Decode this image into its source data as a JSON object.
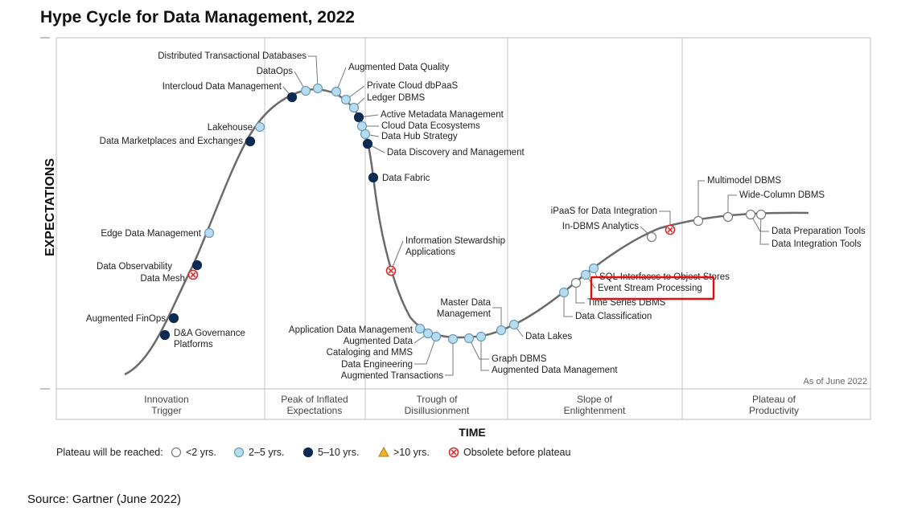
{
  "chart_data": {
    "type": "line",
    "title": "Hype Cycle for Data Management, 2022",
    "xlabel": "TIME",
    "ylabel": "EXPECTATIONS",
    "as_of": "As of June 2022",
    "source": "Source: Gartner (June 2022)",
    "phases": [
      [
        "Innovation",
        "Trigger"
      ],
      [
        "Peak of Inflated",
        "Expectations"
      ],
      [
        "Trough of",
        "Disillusionment"
      ],
      [
        "Slope of",
        "Enlightenment"
      ],
      [
        "Plateau of",
        "Productivity"
      ]
    ],
    "legend": {
      "prefix": "Plateau will be reached:",
      "items": [
        {
          "key": "lt2",
          "label": "<2 yrs."
        },
        {
          "key": "2to5",
          "label": "2–5 yrs."
        },
        {
          "key": "5to10",
          "label": "5–10 yrs."
        },
        {
          "key": "gt10",
          "label": ">10 yrs."
        },
        {
          "key": "obsolete",
          "label": "Obsolete before plateau"
        }
      ]
    },
    "colors": {
      "lt2": "#ffffff",
      "2to5": "#b8dcef",
      "5to10": "#0c2a52",
      "gt10": "#f0b323",
      "obsolete": "#d62b2b",
      "curve": "#6b6b6b",
      "highlight": "#e01010"
    },
    "highlighted": "Event Stream Processing",
    "technologies": [
      {
        "name": "D&A Governance Platforms",
        "lines": [
          "D&A Governance",
          "Platforms"
        ],
        "category": "5to10"
      },
      {
        "name": "Augmented FinOps",
        "lines": [
          "Augmented FinOps"
        ],
        "category": "5to10"
      },
      {
        "name": "Data Mesh",
        "lines": [
          "Data Mesh"
        ],
        "category": "obsolete"
      },
      {
        "name": "Data Observability",
        "lines": [
          "Data Observability"
        ],
        "category": "5to10"
      },
      {
        "name": "Edge Data Management",
        "lines": [
          "Edge Data Management"
        ],
        "category": "2to5"
      },
      {
        "name": "Data Marketplaces and Exchanges",
        "lines": [
          "Data Marketplaces and Exchanges"
        ],
        "category": "5to10"
      },
      {
        "name": "Lakehouse",
        "lines": [
          "Lakehouse"
        ],
        "category": "2to5"
      },
      {
        "name": "Intercloud Data Management",
        "lines": [
          "Intercloud Data Management"
        ],
        "category": "5to10"
      },
      {
        "name": "DataOps",
        "lines": [
          "DataOps"
        ],
        "category": "2to5"
      },
      {
        "name": "Distributed Transactional Databases",
        "lines": [
          "Distributed Transactional Databases"
        ],
        "category": "2to5"
      },
      {
        "name": "Augmented Data Quality",
        "lines": [
          "Augmented Data Quality"
        ],
        "category": "2to5"
      },
      {
        "name": "Private Cloud dbPaaS",
        "lines": [
          "Private Cloud dbPaaS"
        ],
        "category": "2to5"
      },
      {
        "name": "Ledger DBMS",
        "lines": [
          "Ledger DBMS"
        ],
        "category": "2to5"
      },
      {
        "name": "Active Metadata Management",
        "lines": [
          "Active Metadata Management"
        ],
        "category": "5to10"
      },
      {
        "name": "Cloud Data Ecosystems",
        "lines": [
          "Cloud Data Ecosystems"
        ],
        "category": "2to5"
      },
      {
        "name": "Data Hub Strategy",
        "lines": [
          "Data Hub Strategy"
        ],
        "category": "2to5"
      },
      {
        "name": "Data Discovery and Management",
        "lines": [
          "Data Discovery and Management"
        ],
        "category": "5to10"
      },
      {
        "name": "Data Fabric",
        "lines": [
          "Data Fabric"
        ],
        "category": "5to10"
      },
      {
        "name": "Information Stewardship Applications",
        "lines": [
          "Information Stewardship",
          "Applications"
        ],
        "category": "obsolete"
      },
      {
        "name": "Application Data Management",
        "lines": [
          "Application Data Management"
        ],
        "category": "2to5"
      },
      {
        "name": "Augmented Data Cataloging and MMS",
        "lines": [
          "Augmented Data",
          "Cataloging and MMS"
        ],
        "category": "2to5"
      },
      {
        "name": "Data Engineering",
        "lines": [
          "Data Engineering"
        ],
        "category": "2to5"
      },
      {
        "name": "Augmented Transactions",
        "lines": [
          "Augmented Transactions"
        ],
        "category": "2to5"
      },
      {
        "name": "Graph DBMS",
        "lines": [
          "Graph DBMS"
        ],
        "category": "2to5"
      },
      {
        "name": "Augmented Data Management",
        "lines": [
          "Augmented Data Management"
        ],
        "category": "2to5"
      },
      {
        "name": "Master Data Management",
        "lines": [
          "Master Data",
          "Management"
        ],
        "category": "2to5"
      },
      {
        "name": "Data Lakes",
        "lines": [
          "Data Lakes"
        ],
        "category": "2to5"
      },
      {
        "name": "Data Classification",
        "lines": [
          "Data Classification"
        ],
        "category": "2to5"
      },
      {
        "name": "Time Series DBMS",
        "lines": [
          "Time Series DBMS"
        ],
        "category": "lt2"
      },
      {
        "name": "Event Stream Processing",
        "lines": [
          "Event Stream Processing"
        ],
        "category": "2to5"
      },
      {
        "name": "SQL Interfaces to Object Stores",
        "lines": [
          "SQL Interfaces to Object Stores"
        ],
        "category": "2to5"
      },
      {
        "name": "In-DBMS Analytics",
        "lines": [
          "In-DBMS Analytics"
        ],
        "category": "lt2"
      },
      {
        "name": "iPaaS for Data Integration",
        "lines": [
          "iPaaS for Data Integration"
        ],
        "category": "obsolete"
      },
      {
        "name": "Multimodel DBMS",
        "lines": [
          "Multimodel DBMS"
        ],
        "category": "lt2"
      },
      {
        "name": "Wide-Column DBMS",
        "lines": [
          "Wide-Column DBMS"
        ],
        "category": "lt2"
      },
      {
        "name": "Data Preparation Tools",
        "lines": [
          "Data Preparation Tools"
        ],
        "category": "lt2"
      },
      {
        "name": "Data Integration Tools",
        "lines": [
          "Data Integration Tools"
        ],
        "category": "lt2"
      }
    ]
  }
}
